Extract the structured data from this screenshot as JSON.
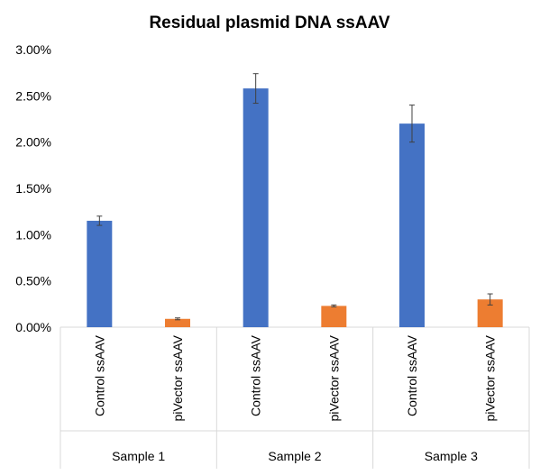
{
  "chart_data": {
    "type": "bar",
    "title": "Residual plasmid DNA ssAAV",
    "xlabel": "",
    "ylabel": "",
    "ylim": [
      0,
      0.03
    ],
    "y_ticks": [
      "0.00%",
      "0.50%",
      "1.00%",
      "1.50%",
      "2.00%",
      "2.50%",
      "3.00%"
    ],
    "y_tick_values": [
      0,
      0.005,
      0.01,
      0.015,
      0.02,
      0.025,
      0.03
    ],
    "grid": false,
    "legend": "none",
    "groups": [
      "Sample 1",
      "Sample 2",
      "Sample 3"
    ],
    "categories": [
      "Control ssAAV",
      "piVector ssAAV",
      "Control ssAAV",
      "piVector ssAAV",
      "Control ssAAV",
      "piVector ssAAV"
    ],
    "values": [
      0.0115,
      0.0009,
      0.0258,
      0.0023,
      0.022,
      0.003
    ],
    "error": [
      0.0005,
      0.0001,
      0.0016,
      0.0001,
      0.002,
      0.0006
    ],
    "colors": [
      "#4472C4",
      "#ED7D31",
      "#4472C4",
      "#ED7D31",
      "#4472C4",
      "#ED7D31"
    ]
  }
}
